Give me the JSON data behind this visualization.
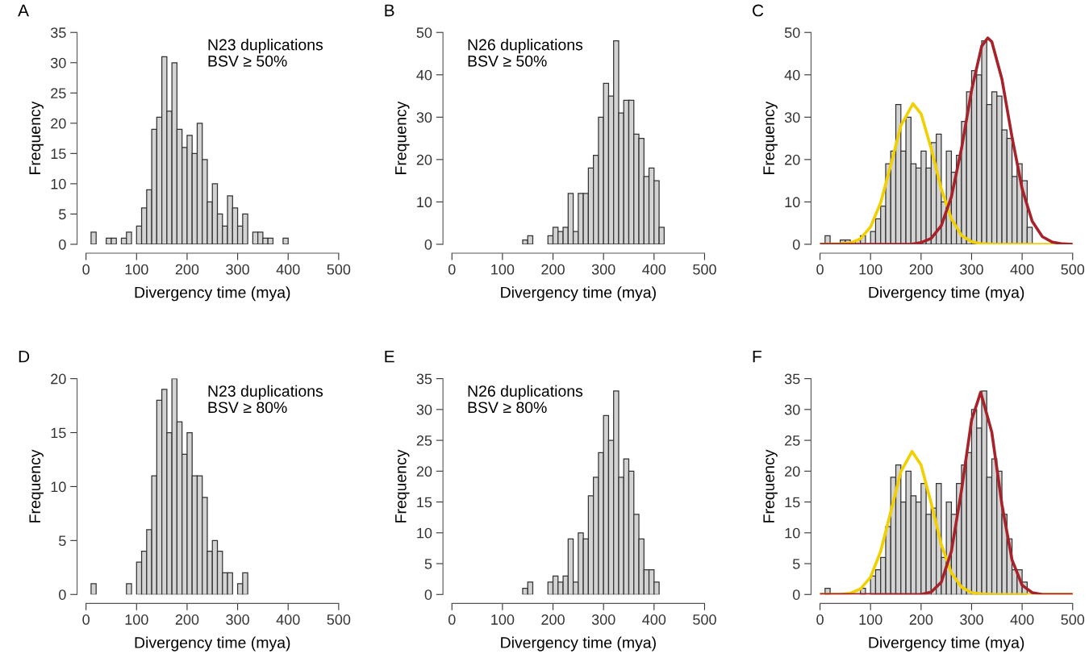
{
  "chart_data": [
    {
      "type": "histogram",
      "title": "A",
      "xlabel": "Divergency time (mya)",
      "ylabel": "Frequency",
      "annotations": [
        "N23 duplications",
        "BSV ≥ 50%"
      ],
      "color": "#d3d3d3",
      "bins": [
        10,
        20,
        30,
        40,
        50,
        60,
        70,
        80,
        90,
        100,
        110,
        120,
        130,
        140,
        150,
        160,
        170,
        180,
        190,
        200,
        210,
        220,
        230,
        240,
        250,
        260,
        270,
        280,
        290,
        300,
        310,
        320,
        330,
        340,
        350,
        360,
        370,
        380,
        390,
        400
      ],
      "values": [
        2,
        0,
        0,
        1,
        1,
        0,
        1,
        2,
        0,
        3,
        6,
        9,
        19,
        21,
        31,
        22,
        30,
        19,
        16,
        18,
        15,
        20,
        14,
        7,
        10,
        5,
        3,
        8,
        6,
        3,
        5,
        0,
        2,
        2,
        1,
        1,
        0,
        0,
        1
      ],
      "xlim": [
        0,
        500
      ],
      "xticks": [
        0,
        100,
        200,
        300,
        400,
        500
      ],
      "ylim": [
        0,
        35
      ],
      "yticks": [
        0,
        5,
        10,
        15,
        20,
        25,
        30,
        35
      ],
      "grid": false,
      "legend": false
    },
    {
      "type": "histogram",
      "title": "B",
      "xlabel": "Divergency time (mya)",
      "ylabel": "Frequency",
      "annotations": [
        "N26 duplications",
        "BSV ≥ 50%"
      ],
      "color": "#d3d3d3",
      "bins": [
        140,
        150,
        160,
        170,
        180,
        190,
        200,
        210,
        220,
        230,
        240,
        250,
        260,
        270,
        280,
        290,
        300,
        310,
        320,
        330,
        340,
        350,
        360,
        370,
        380,
        390,
        400,
        410,
        420
      ],
      "values": [
        1,
        2,
        0,
        0,
        0,
        2,
        4,
        3,
        4,
        12,
        3,
        12,
        12,
        18,
        21,
        30,
        38,
        35,
        48,
        31,
        34,
        34,
        26,
        25,
        16,
        18,
        15,
        4
      ],
      "xlim": [
        0,
        500
      ],
      "xticks": [
        0,
        100,
        200,
        300,
        400,
        500
      ],
      "ylim": [
        0,
        50
      ],
      "yticks": [
        0,
        10,
        20,
        30,
        40,
        50
      ],
      "grid": false,
      "legend": false
    },
    {
      "type": "histogram",
      "title": "C",
      "xlabel": "Divergency time (mya)",
      "ylabel": "Frequency",
      "color": "#d3d3d3",
      "bins": [
        10,
        20,
        30,
        40,
        50,
        60,
        70,
        80,
        90,
        100,
        110,
        120,
        130,
        140,
        150,
        160,
        170,
        180,
        190,
        200,
        210,
        220,
        230,
        240,
        250,
        260,
        270,
        280,
        290,
        300,
        310,
        320,
        330,
        340,
        350,
        360,
        370,
        380,
        390,
        400,
        410,
        420
      ],
      "values": [
        2,
        0,
        0,
        1,
        1,
        0,
        1,
        2,
        0,
        3,
        6,
        9,
        19,
        22,
        33,
        22,
        30,
        19,
        18,
        22,
        18,
        24,
        26,
        10,
        22,
        17,
        21,
        29,
        36,
        41,
        40,
        48,
        33,
        36,
        35,
        27,
        25,
        16,
        19,
        15,
        4
      ],
      "series": [
        {
          "type": "line",
          "color": "#f2d000",
          "x": [
            0,
            40,
            60,
            80,
            100,
            120,
            140,
            160,
            184,
            200,
            220,
            240,
            260,
            280,
            300,
            320,
            350,
            500
          ],
          "values": [
            0,
            0.1,
            0.3,
            1.3,
            4.1,
            9.8,
            18.7,
            28,
            33.2,
            30.8,
            22.6,
            13.1,
            6,
            2.1,
            0.6,
            0.1,
            0,
            0
          ]
        },
        {
          "type": "line",
          "color": "#a8222a",
          "x": [
            0,
            180,
            200,
            220,
            240,
            260,
            280,
            300,
            320,
            332,
            340,
            360,
            380,
            400,
            420,
            440,
            460,
            480,
            500
          ],
          "values": [
            0,
            0,
            0.4,
            1.4,
            4.4,
            11.2,
            22.6,
            36.4,
            46.8,
            48.7,
            47.8,
            39,
            25.3,
            13.1,
            5.4,
            1.8,
            0.5,
            0.1,
            0
          ]
        }
      ],
      "xlim": [
        0,
        500
      ],
      "xticks": [
        0,
        100,
        200,
        300,
        400,
        500
      ],
      "ylim": [
        0,
        50
      ],
      "yticks": [
        0,
        10,
        20,
        30,
        40,
        50
      ],
      "grid": false,
      "legend": false
    },
    {
      "type": "histogram",
      "title": "D",
      "xlabel": "Divergency time (mya)",
      "ylabel": "Frequency",
      "annotations": [
        "N23 duplications",
        "BSV ≥ 80%"
      ],
      "color": "#d3d3d3",
      "bins": [
        10,
        20,
        30,
        40,
        50,
        60,
        70,
        80,
        90,
        100,
        110,
        120,
        130,
        140,
        150,
        160,
        170,
        180,
        190,
        200,
        210,
        220,
        230,
        240,
        250,
        260,
        270,
        280,
        290,
        300,
        310,
        320
      ],
      "values": [
        1,
        0,
        0,
        0,
        0,
        0,
        0,
        1,
        0,
        3,
        4,
        6,
        11,
        18,
        19,
        15,
        20,
        16,
        13,
        15,
        11,
        11,
        9,
        4,
        5,
        4,
        2,
        2,
        0,
        1,
        2
      ],
      "xlim": [
        0,
        500
      ],
      "xticks": [
        0,
        100,
        200,
        300,
        400,
        500
      ],
      "ylim": [
        0,
        20
      ],
      "yticks": [
        0,
        5,
        10,
        15,
        20
      ],
      "grid": false,
      "legend": false
    },
    {
      "type": "histogram",
      "title": "E",
      "xlabel": "Divergency time (mya)",
      "ylabel": "Frequency",
      "annotations": [
        "N26 duplications",
        "BSV ≥ 80%"
      ],
      "color": "#d3d3d3",
      "bins": [
        140,
        150,
        160,
        170,
        180,
        190,
        200,
        210,
        220,
        230,
        240,
        250,
        260,
        270,
        280,
        290,
        300,
        310,
        320,
        330,
        340,
        350,
        360,
        370,
        380,
        390,
        400,
        410
      ],
      "values": [
        1,
        2,
        0,
        0,
        0,
        2,
        3,
        2,
        3,
        9,
        2,
        10,
        9,
        16,
        19,
        23,
        29,
        25,
        33,
        19,
        22,
        20,
        13,
        9,
        4,
        4,
        2
      ],
      "xlim": [
        0,
        500
      ],
      "xticks": [
        0,
        100,
        200,
        300,
        400,
        500
      ],
      "ylim": [
        0,
        35
      ],
      "yticks": [
        0,
        5,
        10,
        15,
        20,
        25,
        30,
        35
      ],
      "grid": false,
      "legend": false
    },
    {
      "type": "histogram",
      "title": "F",
      "xlabel": "Divergency time (mya)",
      "ylabel": "Frequency",
      "color": "#d3d3d3",
      "bins": [
        10,
        20,
        30,
        40,
        50,
        60,
        70,
        80,
        90,
        100,
        110,
        120,
        130,
        140,
        150,
        160,
        170,
        180,
        190,
        200,
        210,
        220,
        230,
        240,
        250,
        260,
        270,
        280,
        290,
        300,
        310,
        320,
        330,
        340,
        350,
        360,
        370,
        380,
        390,
        400,
        410
      ],
      "values": [
        1,
        0,
        0,
        0,
        0,
        0,
        0,
        1,
        0,
        3,
        4,
        6,
        11,
        19,
        21,
        15,
        20,
        16,
        15,
        18,
        13,
        14,
        18,
        6,
        15,
        13,
        18,
        21,
        23,
        30,
        27,
        33,
        19,
        22,
        20,
        13,
        9,
        4,
        4,
        2
      ],
      "series": [
        {
          "type": "line",
          "color": "#f2d000",
          "x": [
            0,
            40,
            60,
            80,
            100,
            120,
            140,
            160,
            182,
            200,
            220,
            240,
            260,
            280,
            300,
            320,
            350,
            500
          ],
          "values": [
            0,
            0,
            0.2,
            0.9,
            2.8,
            7,
            13.4,
            19.9,
            23.2,
            21,
            14.8,
            8.1,
            3.5,
            1.2,
            0.3,
            0.1,
            0,
            0
          ]
        },
        {
          "type": "line",
          "color": "#a8222a",
          "x": [
            0,
            200,
            220,
            240,
            260,
            280,
            300,
            318,
            340,
            360,
            380,
            400,
            420,
            440,
            500
          ],
          "values": [
            0,
            0,
            0.4,
            2,
            7,
            16.9,
            28.3,
            32.8,
            26.3,
            14.6,
            5.6,
            1.5,
            0.3,
            0,
            0
          ]
        }
      ],
      "xlim": [
        0,
        500
      ],
      "xticks": [
        0,
        100,
        200,
        300,
        400,
        500
      ],
      "ylim": [
        0,
        35
      ],
      "yticks": [
        0,
        5,
        10,
        15,
        20,
        25,
        30,
        35
      ],
      "grid": false,
      "legend": false
    }
  ]
}
